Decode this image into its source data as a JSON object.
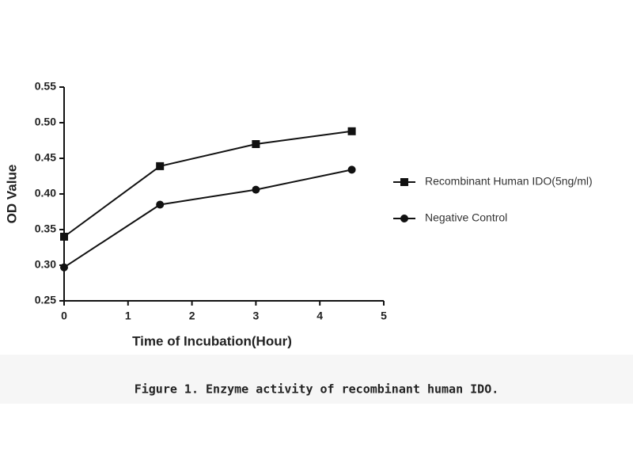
{
  "chart_data": {
    "type": "line",
    "caption": "Figure 1. Enzyme activity of recombinant human IDO.",
    "x_label": "Time of Incubation(Hour)",
    "y_label": "OD Value",
    "x": [
      0,
      1.5,
      3,
      4.5
    ],
    "series": [
      {
        "name": "Recombinant Human IDO(5ng/ml)",
        "color": "#111111",
        "marker": "square",
        "values": [
          0.34,
          0.439,
          0.47,
          0.488
        ]
      },
      {
        "name": "Negative Control",
        "color": "#111111",
        "marker": "circle",
        "values": [
          0.297,
          0.385,
          0.406,
          0.434
        ]
      }
    ],
    "xlim": [
      0,
      5
    ],
    "xticks": [
      0,
      1,
      2,
      3,
      4,
      5
    ],
    "ylim": [
      0.25,
      0.55
    ],
    "yticks": [
      0.25,
      {
        "value": 0.3,
        "label": "0.30"
      },
      0.35,
      {
        "value": 0.4,
        "label": "0.40"
      },
      0.45,
      {
        "value": 0.5,
        "label": "0.50"
      },
      0.55
    ],
    "legend": "right"
  }
}
